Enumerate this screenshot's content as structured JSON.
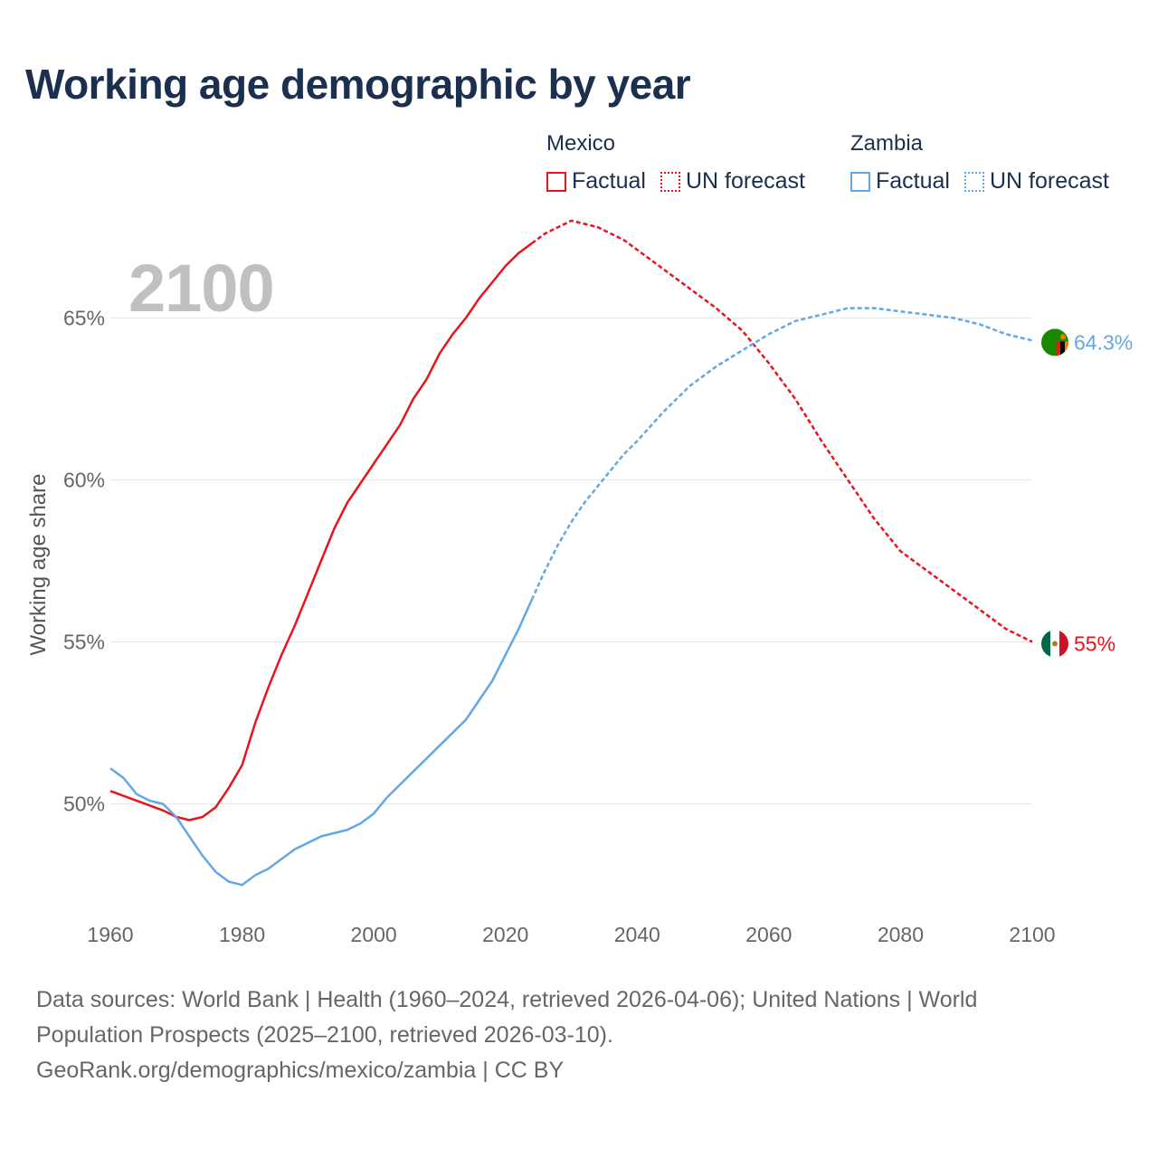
{
  "title": "Working age demographic by year",
  "current_year": "2100",
  "legend": {
    "groups": [
      {
        "name": "Mexico",
        "color": "#e8141b",
        "items": [
          {
            "label": "Factual",
            "style": "solid"
          },
          {
            "label": "UN forecast",
            "style": "dotted"
          }
        ]
      },
      {
        "name": "Zambia",
        "color": "#62a8e5",
        "items": [
          {
            "label": "Factual",
            "style": "solid"
          },
          {
            "label": "UN forecast",
            "style": "dotted"
          }
        ]
      }
    ]
  },
  "footer": {
    "line1": "Data sources: World Bank | Health (1960–2024, retrieved 2026-04-06); United Nations | World Population Prospects (2025–2100, retrieved 2026-03-10).",
    "line2": "GeoRank.org/demographics/mexico/zambia | CC BY"
  },
  "chart_data": {
    "type": "line",
    "title": "Working age demographic by year",
    "xlabel": "",
    "ylabel": "Working age share",
    "xlim": [
      1960,
      2100
    ],
    "ylim": [
      46.5,
      68.5
    ],
    "x_ticks": [
      1960,
      1980,
      2000,
      2020,
      2040,
      2060,
      2080,
      2100
    ],
    "x_tick_labels": [
      "1960",
      "1980",
      "2000",
      "2020",
      "2040",
      "2060",
      "2080",
      "2100"
    ],
    "y_ticks": [
      50,
      55,
      60,
      65
    ],
    "y_tick_labels": [
      "50%",
      "55%",
      "60%",
      "65%"
    ],
    "grid": true,
    "factual_end_year": 2024,
    "series": [
      {
        "name": "Mexico",
        "color": "#e8141b",
        "end_label": "55%",
        "x": [
          1960,
          1964,
          1968,
          1970,
          1972,
          1974,
          1976,
          1978,
          1980,
          1982,
          1984,
          1986,
          1988,
          1990,
          1992,
          1994,
          1996,
          1998,
          2000,
          2002,
          2004,
          2006,
          2008,
          2010,
          2012,
          2014,
          2016,
          2018,
          2020,
          2022,
          2024,
          2026,
          2028,
          2030,
          2032,
          2034,
          2036,
          2038,
          2040,
          2044,
          2048,
          2052,
          2056,
          2060,
          2064,
          2068,
          2072,
          2076,
          2080,
          2084,
          2088,
          2092,
          2096,
          2100
        ],
        "values": [
          50.4,
          50.1,
          49.8,
          49.6,
          49.5,
          49.6,
          49.9,
          50.5,
          51.2,
          52.5,
          53.6,
          54.6,
          55.5,
          56.5,
          57.5,
          58.5,
          59.3,
          59.9,
          60.5,
          61.1,
          61.7,
          62.5,
          63.1,
          63.9,
          64.5,
          65.0,
          65.6,
          66.1,
          66.6,
          67.0,
          67.3,
          67.6,
          67.8,
          68.0,
          67.9,
          67.8,
          67.6,
          67.4,
          67.1,
          66.5,
          65.9,
          65.3,
          64.6,
          63.6,
          62.5,
          61.2,
          60.0,
          58.8,
          57.8,
          57.2,
          56.6,
          56.0,
          55.4,
          55.0
        ]
      },
      {
        "name": "Zambia",
        "color": "#62a8e5",
        "end_label": "64.3%",
        "x": [
          1960,
          1962,
          1964,
          1966,
          1968,
          1970,
          1972,
          1974,
          1976,
          1978,
          1980,
          1982,
          1984,
          1986,
          1988,
          1990,
          1992,
          1994,
          1996,
          1998,
          2000,
          2002,
          2004,
          2006,
          2008,
          2010,
          2012,
          2014,
          2016,
          2018,
          2020,
          2022,
          2024,
          2026,
          2028,
          2030,
          2032,
          2034,
          2036,
          2038,
          2040,
          2044,
          2048,
          2052,
          2056,
          2060,
          2064,
          2068,
          2072,
          2076,
          2080,
          2084,
          2088,
          2092,
          2096,
          2100
        ],
        "values": [
          51.1,
          50.8,
          50.3,
          50.1,
          50.0,
          49.6,
          49.0,
          48.4,
          47.9,
          47.6,
          47.5,
          47.8,
          48.0,
          48.3,
          48.6,
          48.8,
          49.0,
          49.1,
          49.2,
          49.4,
          49.7,
          50.2,
          50.6,
          51.0,
          51.4,
          51.8,
          52.2,
          52.6,
          53.2,
          53.8,
          54.6,
          55.4,
          56.3,
          57.2,
          58.0,
          58.7,
          59.3,
          59.8,
          60.3,
          60.8,
          61.2,
          62.1,
          62.9,
          63.5,
          64.0,
          64.5,
          64.9,
          65.1,
          65.3,
          65.3,
          65.2,
          65.1,
          65.0,
          64.8,
          64.5,
          64.3
        ]
      }
    ],
    "end_markers": [
      {
        "series": "Zambia",
        "flag": "zambia-flag"
      },
      {
        "series": "Mexico",
        "flag": "mexico-flag"
      }
    ]
  }
}
